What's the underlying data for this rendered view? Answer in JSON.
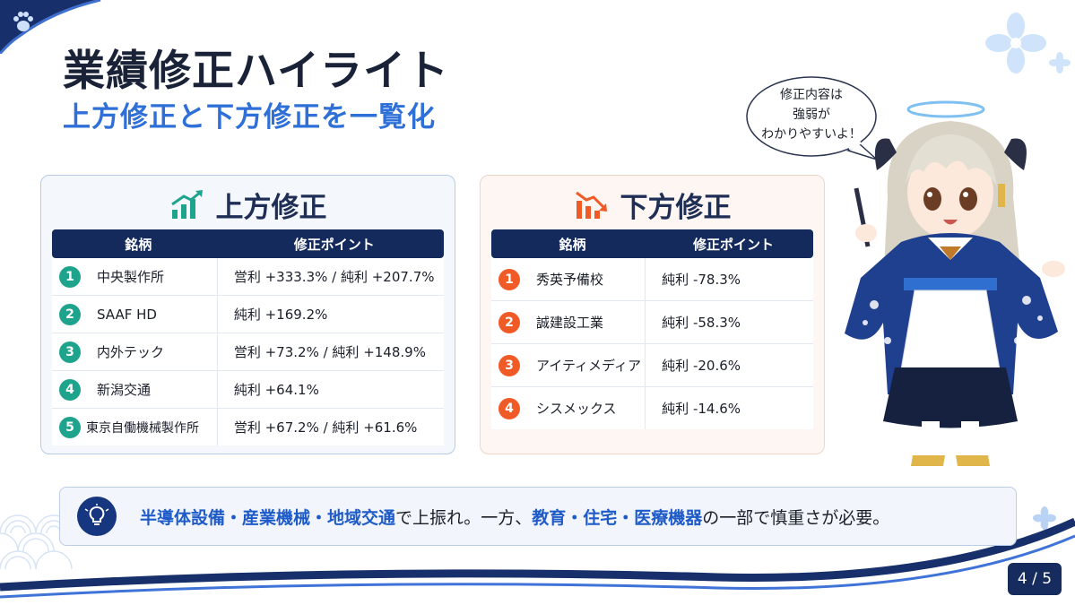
{
  "title": "業績修正ハイライト",
  "subtitle": "上方修正と下方修正を一覧化",
  "upward": {
    "heading": "上方修正",
    "columns": [
      "銘柄",
      "修正ポイント"
    ],
    "rows": [
      {
        "rank": "1",
        "name": "中央製作所",
        "point": "営利 +333.3% / 純利 +207.7%"
      },
      {
        "rank": "2",
        "name": "SAAF HD",
        "point": "純利 +169.2%"
      },
      {
        "rank": "3",
        "name": "内外テック",
        "point": "営利 +73.2% / 純利 +148.9%"
      },
      {
        "rank": "4",
        "name": "新潟交通",
        "point": "純利 +64.1%"
      },
      {
        "rank": "5",
        "name": "東京自働機械製作所",
        "point": "営利 +67.2% / 純利 +61.6%"
      }
    ]
  },
  "downward": {
    "heading": "下方修正",
    "columns": [
      "銘柄",
      "修正ポイント"
    ],
    "rows": [
      {
        "rank": "1",
        "name": "秀英予備校",
        "point": "純利 -78.3%"
      },
      {
        "rank": "2",
        "name": "誠建設工業",
        "point": "純利 -58.3%"
      },
      {
        "rank": "3",
        "name": "アイティメディア",
        "point": "純利 -20.6%"
      },
      {
        "rank": "4",
        "name": "シスメックス",
        "point": "純利 -14.6%"
      }
    ]
  },
  "speech_bubble": {
    "lines": [
      "修正内容は",
      "強弱が",
      "わかりやすいよ！"
    ]
  },
  "note": {
    "hl1": "半導体設備・産業機械・地域交通",
    "t1": "で上振れ。一方、",
    "hl2": "教育・住宅・医療機器",
    "t2": "の一部で慎重さが必要。"
  },
  "page_indicator": "4 / 5",
  "colors": {
    "navy": "#142a5c",
    "accent_blue": "#2e6fd8",
    "up_green": "#1ea38d",
    "down_orange": "#f05a26"
  },
  "icons": {
    "up_heading": "chart-up-icon",
    "down_heading": "chart-down-icon",
    "note": "lightbulb-icon",
    "corner": "paw-icon",
    "decor": "flower-icon"
  }
}
